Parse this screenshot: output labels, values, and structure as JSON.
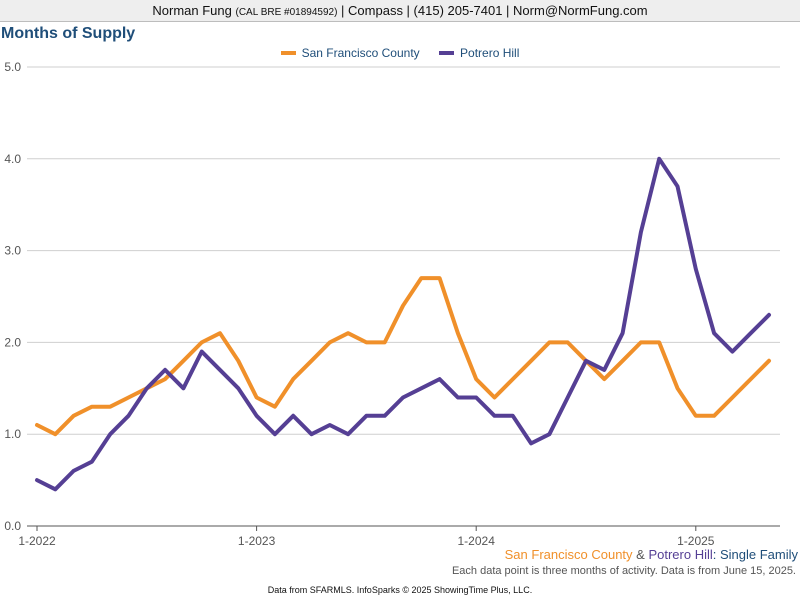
{
  "header": {
    "name": "Norman Fung",
    "license": "(CAL BRE #01894592)",
    "rest": "| Compass | (415) 205-7401 | Norm@NormFung.com"
  },
  "chart_title": "Months of Supply",
  "caption": {
    "area1": "San Francisco County",
    "amp": " & ",
    "area2": "Potrero Hill",
    "suffix": ": Single Family",
    "note": "Each data point is three months of activity. Data is from June 15, 2025."
  },
  "footer": "Data from SFARMLS. InfoSparks © 2025 ShowingTime Plus, LLC.",
  "chart_data": {
    "type": "line",
    "title": "Months of Supply",
    "xlabel": "",
    "ylabel": "",
    "ylim": [
      0,
      5
    ],
    "yticks": [
      "0.0",
      "1.0",
      "2.0",
      "3.0",
      "4.0",
      "5.0"
    ],
    "xticks": [
      "1-2022",
      "1-2023",
      "1-2024",
      "1-2025"
    ],
    "x": [
      "2022-01",
      "2022-02",
      "2022-03",
      "2022-04",
      "2022-05",
      "2022-06",
      "2022-07",
      "2022-08",
      "2022-09",
      "2022-10",
      "2022-11",
      "2022-12",
      "2023-01",
      "2023-02",
      "2023-03",
      "2023-04",
      "2023-05",
      "2023-06",
      "2023-07",
      "2023-08",
      "2023-09",
      "2023-10",
      "2023-11",
      "2023-12",
      "2024-01",
      "2024-02",
      "2024-03",
      "2024-04",
      "2024-05",
      "2024-06",
      "2024-07",
      "2024-08",
      "2024-09",
      "2024-10",
      "2024-11",
      "2024-12",
      "2025-01",
      "2025-02",
      "2025-03",
      "2025-04",
      "2025-05"
    ],
    "legend": "top-center",
    "grid": true,
    "series": [
      {
        "name": "San Francisco County",
        "color": "#f0902a",
        "values": [
          1.1,
          1.0,
          1.2,
          1.3,
          1.3,
          1.4,
          1.5,
          1.6,
          1.8,
          2.0,
          2.1,
          1.8,
          1.4,
          1.3,
          1.6,
          1.8,
          2.0,
          2.1,
          2.0,
          2.0,
          2.4,
          2.7,
          2.7,
          2.1,
          1.6,
          1.4,
          1.6,
          1.8,
          2.0,
          2.0,
          1.8,
          1.6,
          1.8,
          2.0,
          2.0,
          1.5,
          1.2,
          1.2,
          1.4,
          1.6,
          1.8
        ]
      },
      {
        "name": "Potrero Hill",
        "color": "#553f94",
        "values": [
          0.5,
          0.4,
          0.6,
          0.7,
          1.0,
          1.2,
          1.5,
          1.7,
          1.5,
          1.9,
          1.7,
          1.5,
          1.2,
          1.0,
          1.2,
          1.0,
          1.1,
          1.0,
          1.2,
          1.2,
          1.4,
          1.5,
          1.6,
          1.4,
          1.4,
          1.2,
          1.2,
          0.9,
          1.0,
          1.4,
          1.8,
          1.7,
          2.1,
          3.2,
          4.0,
          3.7,
          2.8,
          2.1,
          1.9,
          2.1,
          2.3
        ]
      }
    ]
  }
}
